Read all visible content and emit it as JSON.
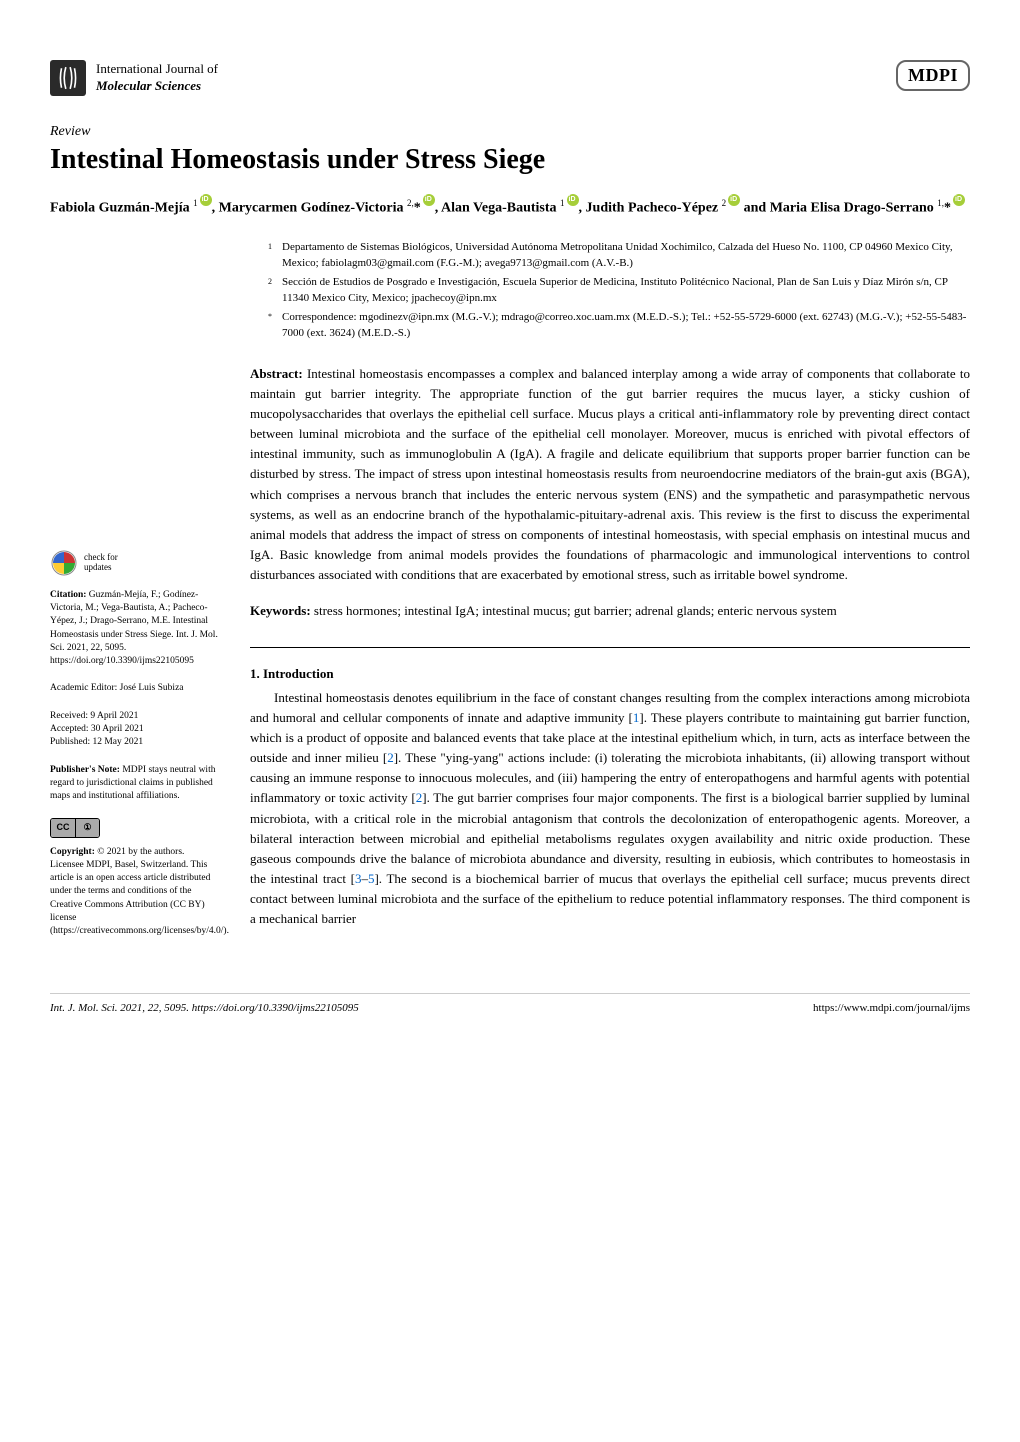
{
  "journal": {
    "line1": "International Journal of",
    "line2": "Molecular Sciences",
    "publisher": "MDPI"
  },
  "article_type": "Review",
  "title": "Intestinal Homeostasis under Stress Siege",
  "authors_html": "Fabiola Guzmán-Mejía <sup>1</sup>{ORCID}, Marycarmen Godínez-Victoria <sup>2,</sup>*{ORCID}, Alan Vega-Bautista <sup>1</sup>{ORCID}, Judith Pacheco-Yépez <sup>2</sup>{ORCID} and Maria Elisa Drago-Serrano <sup>1,</sup>*{ORCID}",
  "affiliations": [
    {
      "num": "1",
      "text": "Departamento de Sistemas Biológicos, Universidad Autónoma Metropolitana Unidad Xochimilco, Calzada del Hueso No. 1100, CP 04960 Mexico City, Mexico; fabiolagm03@gmail.com (F.G.-M.); avega9713@gmail.com (A.V.-B.)"
    },
    {
      "num": "2",
      "text": "Sección de Estudios de Posgrado e Investigación, Escuela Superior de Medicina, Instituto Politécnico Nacional, Plan de San Luis y Díaz Mirón s/n, CP 11340 Mexico City, Mexico; jpachecoy@ipn.mx"
    },
    {
      "num": "*",
      "text": "Correspondence: mgodinezv@ipn.mx (M.G.-V.); mdrago@correo.xoc.uam.mx (M.E.D.-S.); Tel.: +52-55-5729-6000 (ext. 62743) (M.G.-V.); +52-55-5483-7000 (ext. 3624) (M.E.D.-S.)"
    }
  ],
  "abstract": {
    "label": "Abstract:",
    "text": "Intestinal homeostasis encompasses a complex and balanced interplay among a wide array of components that collaborate to maintain gut barrier integrity. The appropriate function of the gut barrier requires the mucus layer, a sticky cushion of mucopolysaccharides that overlays the epithelial cell surface. Mucus plays a critical anti-inflammatory role by preventing direct contact between luminal microbiota and the surface of the epithelial cell monolayer. Moreover, mucus is enriched with pivotal effectors of intestinal immunity, such as immunoglobulin A (IgA). A fragile and delicate equilibrium that supports proper barrier function can be disturbed by stress. The impact of stress upon intestinal homeostasis results from neuroendocrine mediators of the brain-gut axis (BGA), which comprises a nervous branch that includes the enteric nervous system (ENS) and the sympathetic and parasympathetic nervous systems, as well as an endocrine branch of the hypothalamic-pituitary-adrenal axis. This review is the first to discuss the experimental animal models that address the impact of stress on components of intestinal homeostasis, with special emphasis on intestinal mucus and IgA. Basic knowledge from animal models provides the foundations of pharmacologic and immunological interventions to control disturbances associated with conditions that are exacerbated by emotional stress, such as irritable bowel syndrome."
  },
  "keywords": {
    "label": "Keywords:",
    "text": "stress hormones; intestinal IgA; intestinal mucus; gut barrier; adrenal glands; enteric nervous system"
  },
  "section1": {
    "heading": "1. Introduction",
    "body": "Intestinal homeostasis denotes equilibrium in the face of constant changes resulting from the complex interactions among microbiota and humoral and cellular components of innate and adaptive immunity [{R1}]. These players contribute to maintaining gut barrier function, which is a product of opposite and balanced events that take place at the intestinal epithelium which, in turn, acts as interface between the outside and inner milieu [{R2}]. These \"ying-yang\" actions include: (i) tolerating the microbiota inhabitants, (ii) allowing transport without causing an immune response to innocuous molecules, and (iii) hampering the entry of enteropathogens and harmful agents with potential inflammatory or toxic activity [{R2}]. The gut barrier comprises four major components. The first is a biological barrier supplied by luminal microbiota, with a critical role in the microbial antagonism that controls the decolonization of enteropathogenic agents. Moreover, a bilateral interaction between microbial and epithelial metabolisms regulates oxygen availability and nitric oxide production. These gaseous compounds drive the balance of microbiota abundance and diversity, resulting in eubiosis, which contributes to homeostasis in the intestinal tract [{R3}–{R5}]. The second is a biochemical barrier of mucus that overlays the epithelial cell surface; mucus prevents direct contact between luminal microbiota and the surface of the epithelium to reduce potential inflammatory responses. The third component is a mechanical barrier"
  },
  "sidebar": {
    "check_updates": "check for\nupdates",
    "citation_label": "Citation:",
    "citation_text": "Guzmán-Mejía, F.; Godínez-Victoria, M.; Vega-Bautista, A.; Pacheco-Yépez, J.; Drago-Serrano, M.E. Intestinal Homeostasis under Stress Siege. Int. J. Mol. Sci. 2021, 22, 5095. https://doi.org/10.3390/ijms22105095",
    "editor_label": "Academic Editor:",
    "editor": "José Luis Subiza",
    "received": "Received: 9 April 2021",
    "accepted": "Accepted: 30 April 2021",
    "published": "Published: 12 May 2021",
    "note_label": "Publisher's Note:",
    "note_text": "MDPI stays neutral with regard to jurisdictional claims in published maps and institutional affiliations.",
    "copyright_label": "Copyright:",
    "copyright_text": "© 2021 by the authors. Licensee MDPI, Basel, Switzerland. This article is an open access article distributed under the terms and conditions of the Creative Commons Attribution (CC BY) license (https://creativecommons.org/licenses/by/4.0/)."
  },
  "footer": {
    "left": "Int. J. Mol. Sci. 2021, 22, 5095. https://doi.org/10.3390/ijms22105095",
    "right": "https://www.mdpi.com/journal/ijms"
  },
  "refs": {
    "r1": "1",
    "r2": "2",
    "r3": "3",
    "r5": "5"
  },
  "colors": {
    "link": "#0066cc",
    "orcid": "#a6ce39"
  }
}
